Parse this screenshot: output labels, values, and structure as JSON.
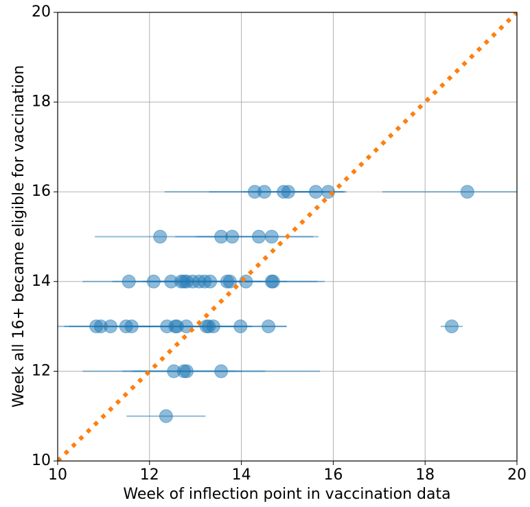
{
  "chart_data": {
    "type": "scatter",
    "xlabel": "Week of inflection point in vaccination data",
    "ylabel": "Week all 16+ became eligible for vaccination",
    "xlim": [
      10,
      20
    ],
    "ylim": [
      10,
      20
    ],
    "xticks": [
      10,
      12,
      14,
      16,
      18,
      20
    ],
    "yticks": [
      10,
      12,
      14,
      16,
      18,
      20
    ],
    "grid": true,
    "series": [
      {
        "color": "#1f77b4",
        "x": [
          14.29,
          14.5,
          14.92,
          15.02,
          15.62,
          15.89,
          18.92,
          12.23,
          13.56,
          13.8,
          14.38,
          14.66,
          11.55,
          12.09,
          12.47,
          12.69,
          12.75,
          12.81,
          12.94,
          13.08,
          13.2,
          13.32,
          13.69,
          13.75,
          14.1,
          14.66,
          14.69,
          10.84,
          10.94,
          11.15,
          11.49,
          11.61,
          12.38,
          12.56,
          12.6,
          12.8,
          13.24,
          13.29,
          13.39,
          13.98,
          14.59,
          18.58,
          12.53,
          12.75,
          12.81,
          13.56,
          12.36
        ],
        "values": [
          16,
          16,
          16,
          16,
          16,
          16,
          16,
          15,
          15,
          15,
          15,
          15,
          14,
          14,
          14,
          14,
          14,
          14,
          14,
          14,
          14,
          14,
          14,
          14,
          14,
          14,
          14,
          13,
          13,
          13,
          13,
          13,
          13,
          13,
          13,
          13,
          13,
          13,
          13,
          13,
          13,
          13,
          12,
          12,
          12,
          12,
          11
        ],
        "xerr": [
          1.96,
          1.2,
          0.9,
          0.8,
          0.6,
          0.4,
          1.85,
          1.42,
          1.0,
          0.8,
          1.3,
          0.9,
          1.01,
          0.9,
          0.8,
          0.7,
          0.9,
          0.6,
          0.8,
          0.7,
          1.0,
          0.9,
          0.8,
          0.7,
          0.9,
          1.0,
          1.12,
          0.9,
          0.8,
          0.9,
          0.7,
          0.8,
          1.0,
          0.9,
          0.8,
          1.1,
          1.0,
          0.9,
          0.8,
          1.0,
          0.4,
          0.24,
          1.99,
          1.1,
          1.2,
          2.15,
          0.86
        ]
      }
    ],
    "reference_line": {
      "color": "#ff7f0e",
      "x": [
        10,
        20
      ],
      "values": [
        10,
        20
      ]
    }
  }
}
